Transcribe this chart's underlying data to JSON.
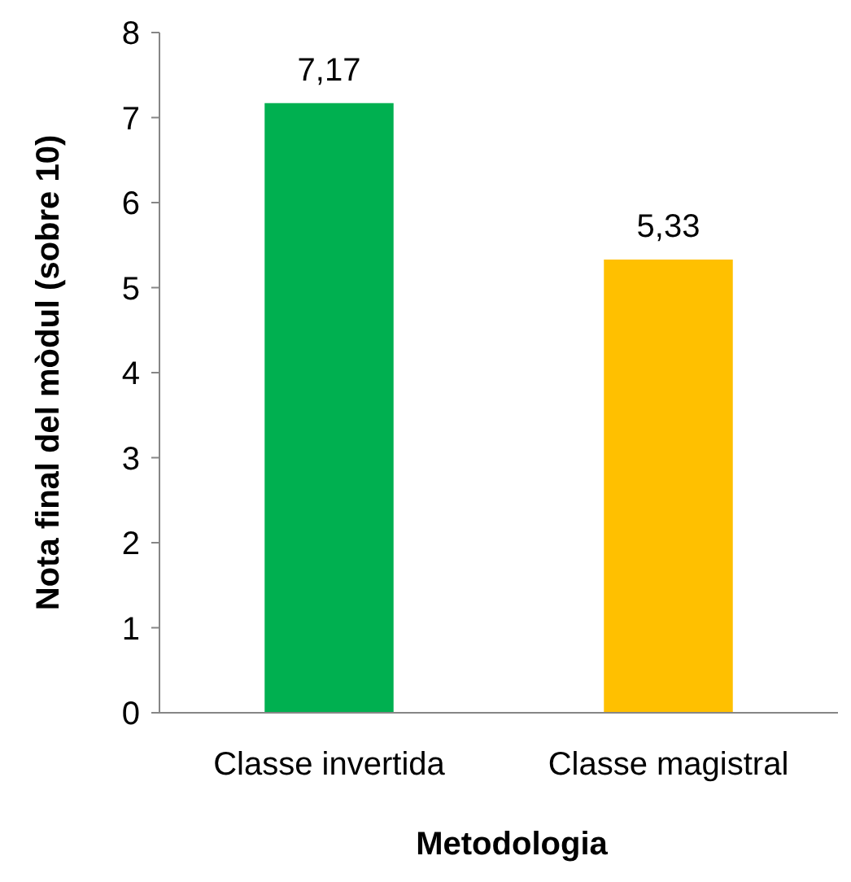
{
  "chart_data": {
    "type": "bar",
    "xlabel": "Metodologia",
    "ylabel": "Nota final del mòdul (sobre 10)",
    "categories": [
      "Classe invertida",
      "Classe magistral"
    ],
    "values": [
      7.17,
      5.33
    ],
    "colors": [
      "#00b050",
      "#ffc000"
    ],
    "value_labels": [
      "7,17",
      "5,33"
    ],
    "ylim": [
      0,
      8
    ],
    "yticks": [
      0,
      1,
      2,
      3,
      4,
      5,
      6,
      7,
      8
    ]
  }
}
